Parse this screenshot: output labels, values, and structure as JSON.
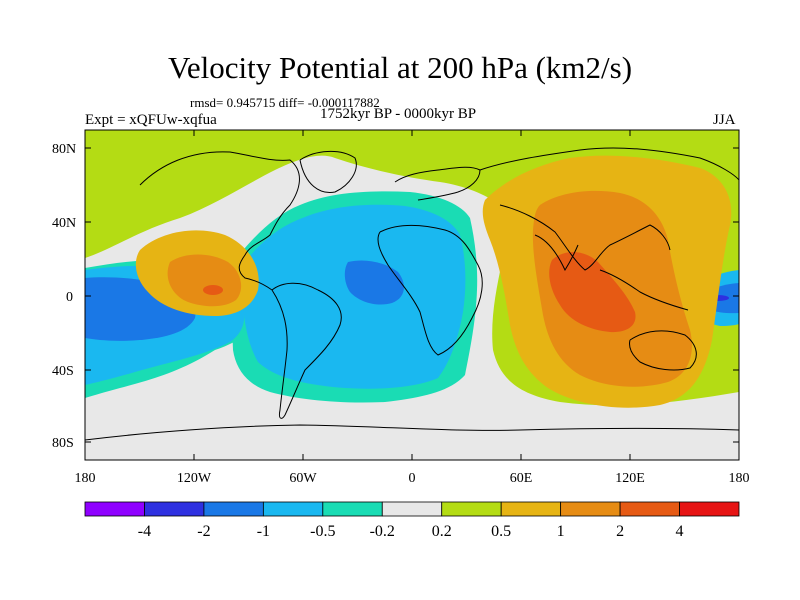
{
  "title": "Velocity Potential at 200 hPa (km2/s)",
  "stats": "rmsd= 0.945715 diff= -0.000117882",
  "experiment": "Expt = xQFUw-xqfua",
  "period": "1752kyr BP - 0000kyr BP",
  "season": "JJA",
  "map": {
    "lat_ticks": [
      "80N",
      "40N",
      "0",
      "40S",
      "80S"
    ],
    "lon_ticks": [
      "180",
      "120W",
      "60W",
      "0",
      "60E",
      "120E",
      "180"
    ]
  },
  "colorbar": {
    "colors": [
      "#8f00ff",
      "#2e30e0",
      "#1a78e6",
      "#1ab8f0",
      "#1adcb4",
      "#e8e8e8",
      "#b4dc14",
      "#e6b414",
      "#e68c14",
      "#e65a14",
      "#e61414"
    ],
    "labels": [
      "-4",
      "-2",
      "-1",
      "-0.5",
      "-0.2",
      "0.2",
      "0.5",
      "1",
      "2",
      "4"
    ]
  },
  "palette": {
    "light_green": "#b4dc14",
    "gray": "#e8e8e8",
    "cyan": "#1adcb4",
    "light_blue": "#1ab8f0",
    "mid_blue": "#1a78e6",
    "dark_blue": "#2e30e0",
    "gold": "#e6b414",
    "orange": "#e68c14",
    "red_orange": "#e65a14",
    "red": "#e61414"
  }
}
